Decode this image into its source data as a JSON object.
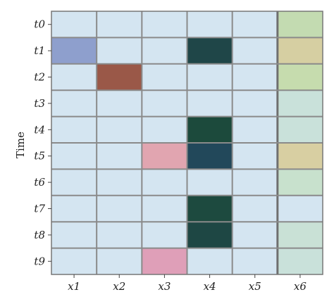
{
  "chart_data": {
    "type": "heatmap",
    "ylabel": "Time",
    "xlabel": "",
    "x_categories": [
      "x1",
      "x2",
      "x3",
      "x4",
      "x5",
      "x6"
    ],
    "y_categories": [
      "t0",
      "t1",
      "t2",
      "t3",
      "t4",
      "t5",
      "t6",
      "t7",
      "t8",
      "t9"
    ],
    "cell_colors": [
      [
        "#d4e5f1",
        "#d4e5f1",
        "#d4e5f1",
        "#d4e5f1",
        "#d4e5f1",
        "#c3dbb1"
      ],
      [
        "#8e9fcd",
        "#d4e5f1",
        "#d4e5f1",
        "#1f4648",
        "#d4e5f1",
        "#d6cfa2"
      ],
      [
        "#d4e5f1",
        "#9a5848",
        "#d4e5f1",
        "#d4e5f1",
        "#d4e5f1",
        "#c6dcae"
      ],
      [
        "#d4e5f1",
        "#d4e5f1",
        "#d4e5f1",
        "#d4e5f1",
        "#d4e5f1",
        "#c9e1da"
      ],
      [
        "#d4e5f1",
        "#d4e5f1",
        "#d4e5f1",
        "#1c4a3c",
        "#d4e5f1",
        "#c9e1da"
      ],
      [
        "#d4e5f1",
        "#d4e5f1",
        "#e1a5b0",
        "#22485a",
        "#d4e5f1",
        "#d8cfa2"
      ],
      [
        "#d4e5f1",
        "#d4e5f1",
        "#d4e5f1",
        "#d4e5f1",
        "#d4e5f1",
        "#c8e1cd"
      ],
      [
        "#d4e5f1",
        "#d4e5f1",
        "#d4e5f1",
        "#1d4a3f",
        "#d4e5f1",
        "#d4e5f1"
      ],
      [
        "#d4e5f1",
        "#d4e5f1",
        "#d4e5f1",
        "#1e4744",
        "#d4e5f1",
        "#c9e1d6"
      ],
      [
        "#d4e5f1",
        "#d4e5f1",
        "#df9fb8",
        "#d4e5f1",
        "#d4e5f1",
        "#c9e1da"
      ]
    ],
    "grid": true,
    "legend": "none"
  }
}
